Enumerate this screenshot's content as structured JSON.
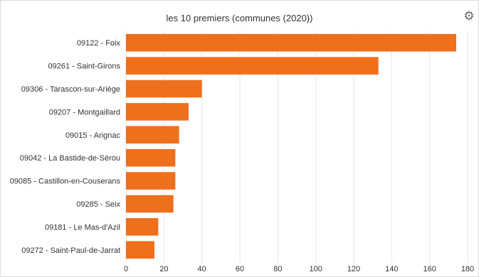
{
  "chart_data": {
    "type": "bar",
    "orientation": "horizontal",
    "title": "les 10 premiers (communes (2020))",
    "categories": [
      "09122 - Foix",
      "09261 - Saint-Girons",
      "09306 - Tarascon-sur-Ariège",
      "09207 - Montgaillard",
      "09015 - Arignac",
      "09042 - La Bastide-de-Sérou",
      "09085 - Castillon-en-Couserans",
      "09285 - Seix",
      "09181 - Le Mas-d'Azil",
      "09272 - Saint-Paul-de-Jarrat"
    ],
    "values": [
      174,
      133,
      40,
      33,
      28,
      26,
      26,
      25,
      17,
      15
    ],
    "xlim": [
      0,
      180
    ],
    "ticks": [
      "0",
      "20",
      "40",
      "60",
      "80",
      "100",
      "120",
      "140",
      "160",
      "180"
    ],
    "grid": true,
    "bar_color": "#ee6f1c",
    "grid_color": "#e6e6e6"
  },
  "toolbar": {
    "settings_icon": "gear-icon"
  }
}
